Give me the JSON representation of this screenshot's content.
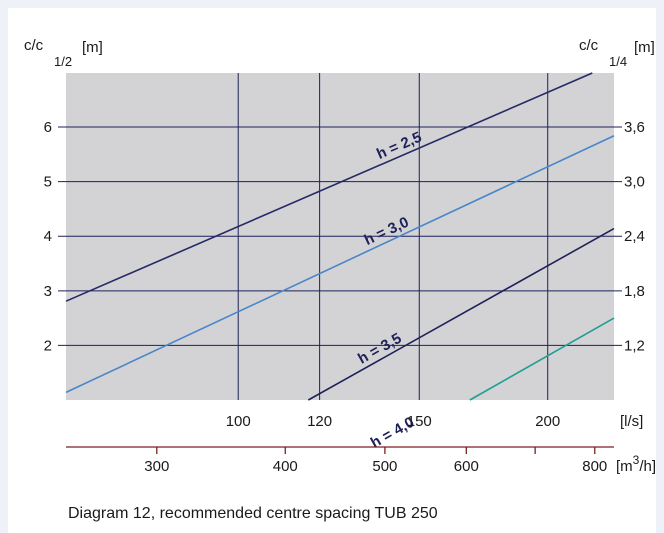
{
  "chart_data": {
    "type": "line",
    "left_axis": {
      "title_main": "c/c",
      "title_sub": "1/2",
      "title_unit": "[m]",
      "ticks": [
        {
          "value": 2,
          "label": "2"
        },
        {
          "value": 3,
          "label": "3"
        },
        {
          "value": 4,
          "label": "4"
        },
        {
          "value": 5,
          "label": "5"
        },
        {
          "value": 6,
          "label": "6"
        }
      ],
      "range": [
        1,
        6.99
      ]
    },
    "right_axis": {
      "title_main": "c/c",
      "title_sub": "1/4",
      "title_unit": "[m]",
      "ticks": [
        {
          "at": 2,
          "label": "1,2"
        },
        {
          "at": 3,
          "label": "1,8"
        },
        {
          "at": 4,
          "label": "2,4"
        },
        {
          "at": 5,
          "label": "3,0"
        },
        {
          "at": 6,
          "label": "3,6"
        }
      ]
    },
    "x_axis_ls": {
      "unit": "[l/s]",
      "ticks": [
        {
          "value": 100,
          "label": "100"
        },
        {
          "value": 120,
          "label": "120"
        },
        {
          "value": 150,
          "label": "150"
        },
        {
          "value": 200,
          "label": "200"
        }
      ],
      "range": [
        68,
        232
      ],
      "scale": "log"
    },
    "x_axis_m3h": {
      "unit_prefix": "[m",
      "unit_sup": "3",
      "unit_suffix": "/h]",
      "ticks": [
        {
          "value": 300,
          "label": "300"
        },
        {
          "value": 400,
          "label": "400"
        },
        {
          "value": 500,
          "label": "500"
        },
        {
          "value": 600,
          "label": "600"
        },
        {
          "value": 800,
          "label": "800"
        }
      ],
      "minor": [
        700
      ],
      "scale": "log"
    },
    "series": [
      {
        "name": "h = 2,5",
        "color": "#252a66",
        "points": [
          [
            68,
            2.81
          ],
          [
            221,
            6.99
          ]
        ]
      },
      {
        "name": "h = 3,0",
        "color": "#4a86c8",
        "points": [
          [
            68,
            1.14
          ],
          [
            232,
            5.84
          ]
        ]
      },
      {
        "name": "h = 3,5",
        "color": "#1e2158",
        "points": [
          [
            117,
            1
          ],
          [
            232,
            4.14
          ]
        ]
      },
      {
        "name": "h = 4,0",
        "color": "#1f9e94",
        "points": [
          [
            168,
            1
          ],
          [
            232,
            2.5
          ]
        ]
      }
    ],
    "grid": true
  },
  "caption": "Diagram 12, recommended centre spacing TUB 250"
}
